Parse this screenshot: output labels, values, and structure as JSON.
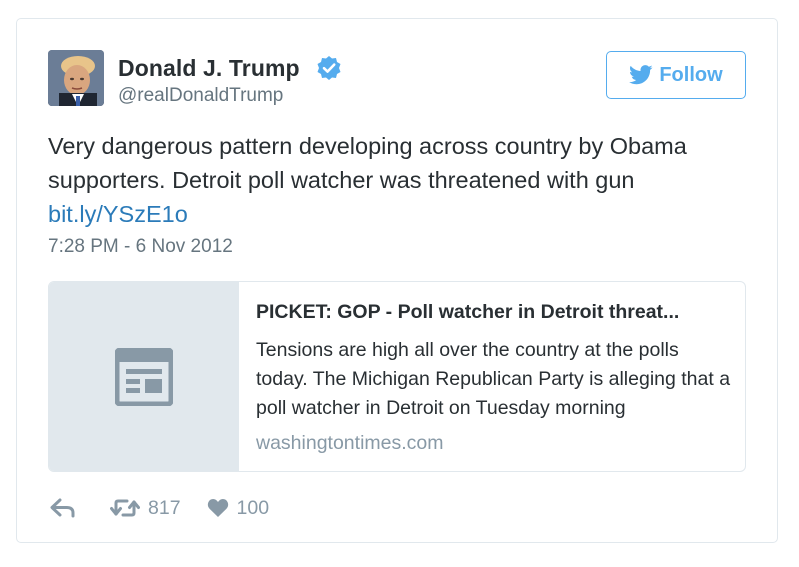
{
  "tweet": {
    "author": {
      "display_name": "Donald J. Trump",
      "handle": "@realDonaldTrump",
      "verified_icon": "verified-badge-icon"
    },
    "follow_button": {
      "label": "Follow",
      "icon": "twitter-bird-icon"
    },
    "text_lines": [
      "Very dangerous pattern developing across country by Obama",
      "supporters. Detroit poll watcher was threatened with gun"
    ],
    "link_text": "bit.ly/YSzE1o",
    "timestamp": "7:28 PM - 6 Nov 2012",
    "link_card": {
      "title": "PICKET: GOP - Poll watcher in Detroit threat...",
      "description": "Tensions are high all over the country at the polls today. The Michigan Republican Party is alleging that a poll watcher in Detroit on Tuesday morning",
      "domain": "washingtontimes.com",
      "thumbnail_icon": "article-icon"
    },
    "actions": {
      "reply_icon": "reply-icon",
      "retweet_icon": "retweet-icon",
      "retweet_count": "817",
      "like_icon": "heart-icon",
      "like_count": "100"
    }
  },
  "colors": {
    "accent": "#55acee",
    "link": "#2b7bb9",
    "text": "#292f33",
    "muted": "#66757f",
    "border": "#e1e8ed"
  }
}
